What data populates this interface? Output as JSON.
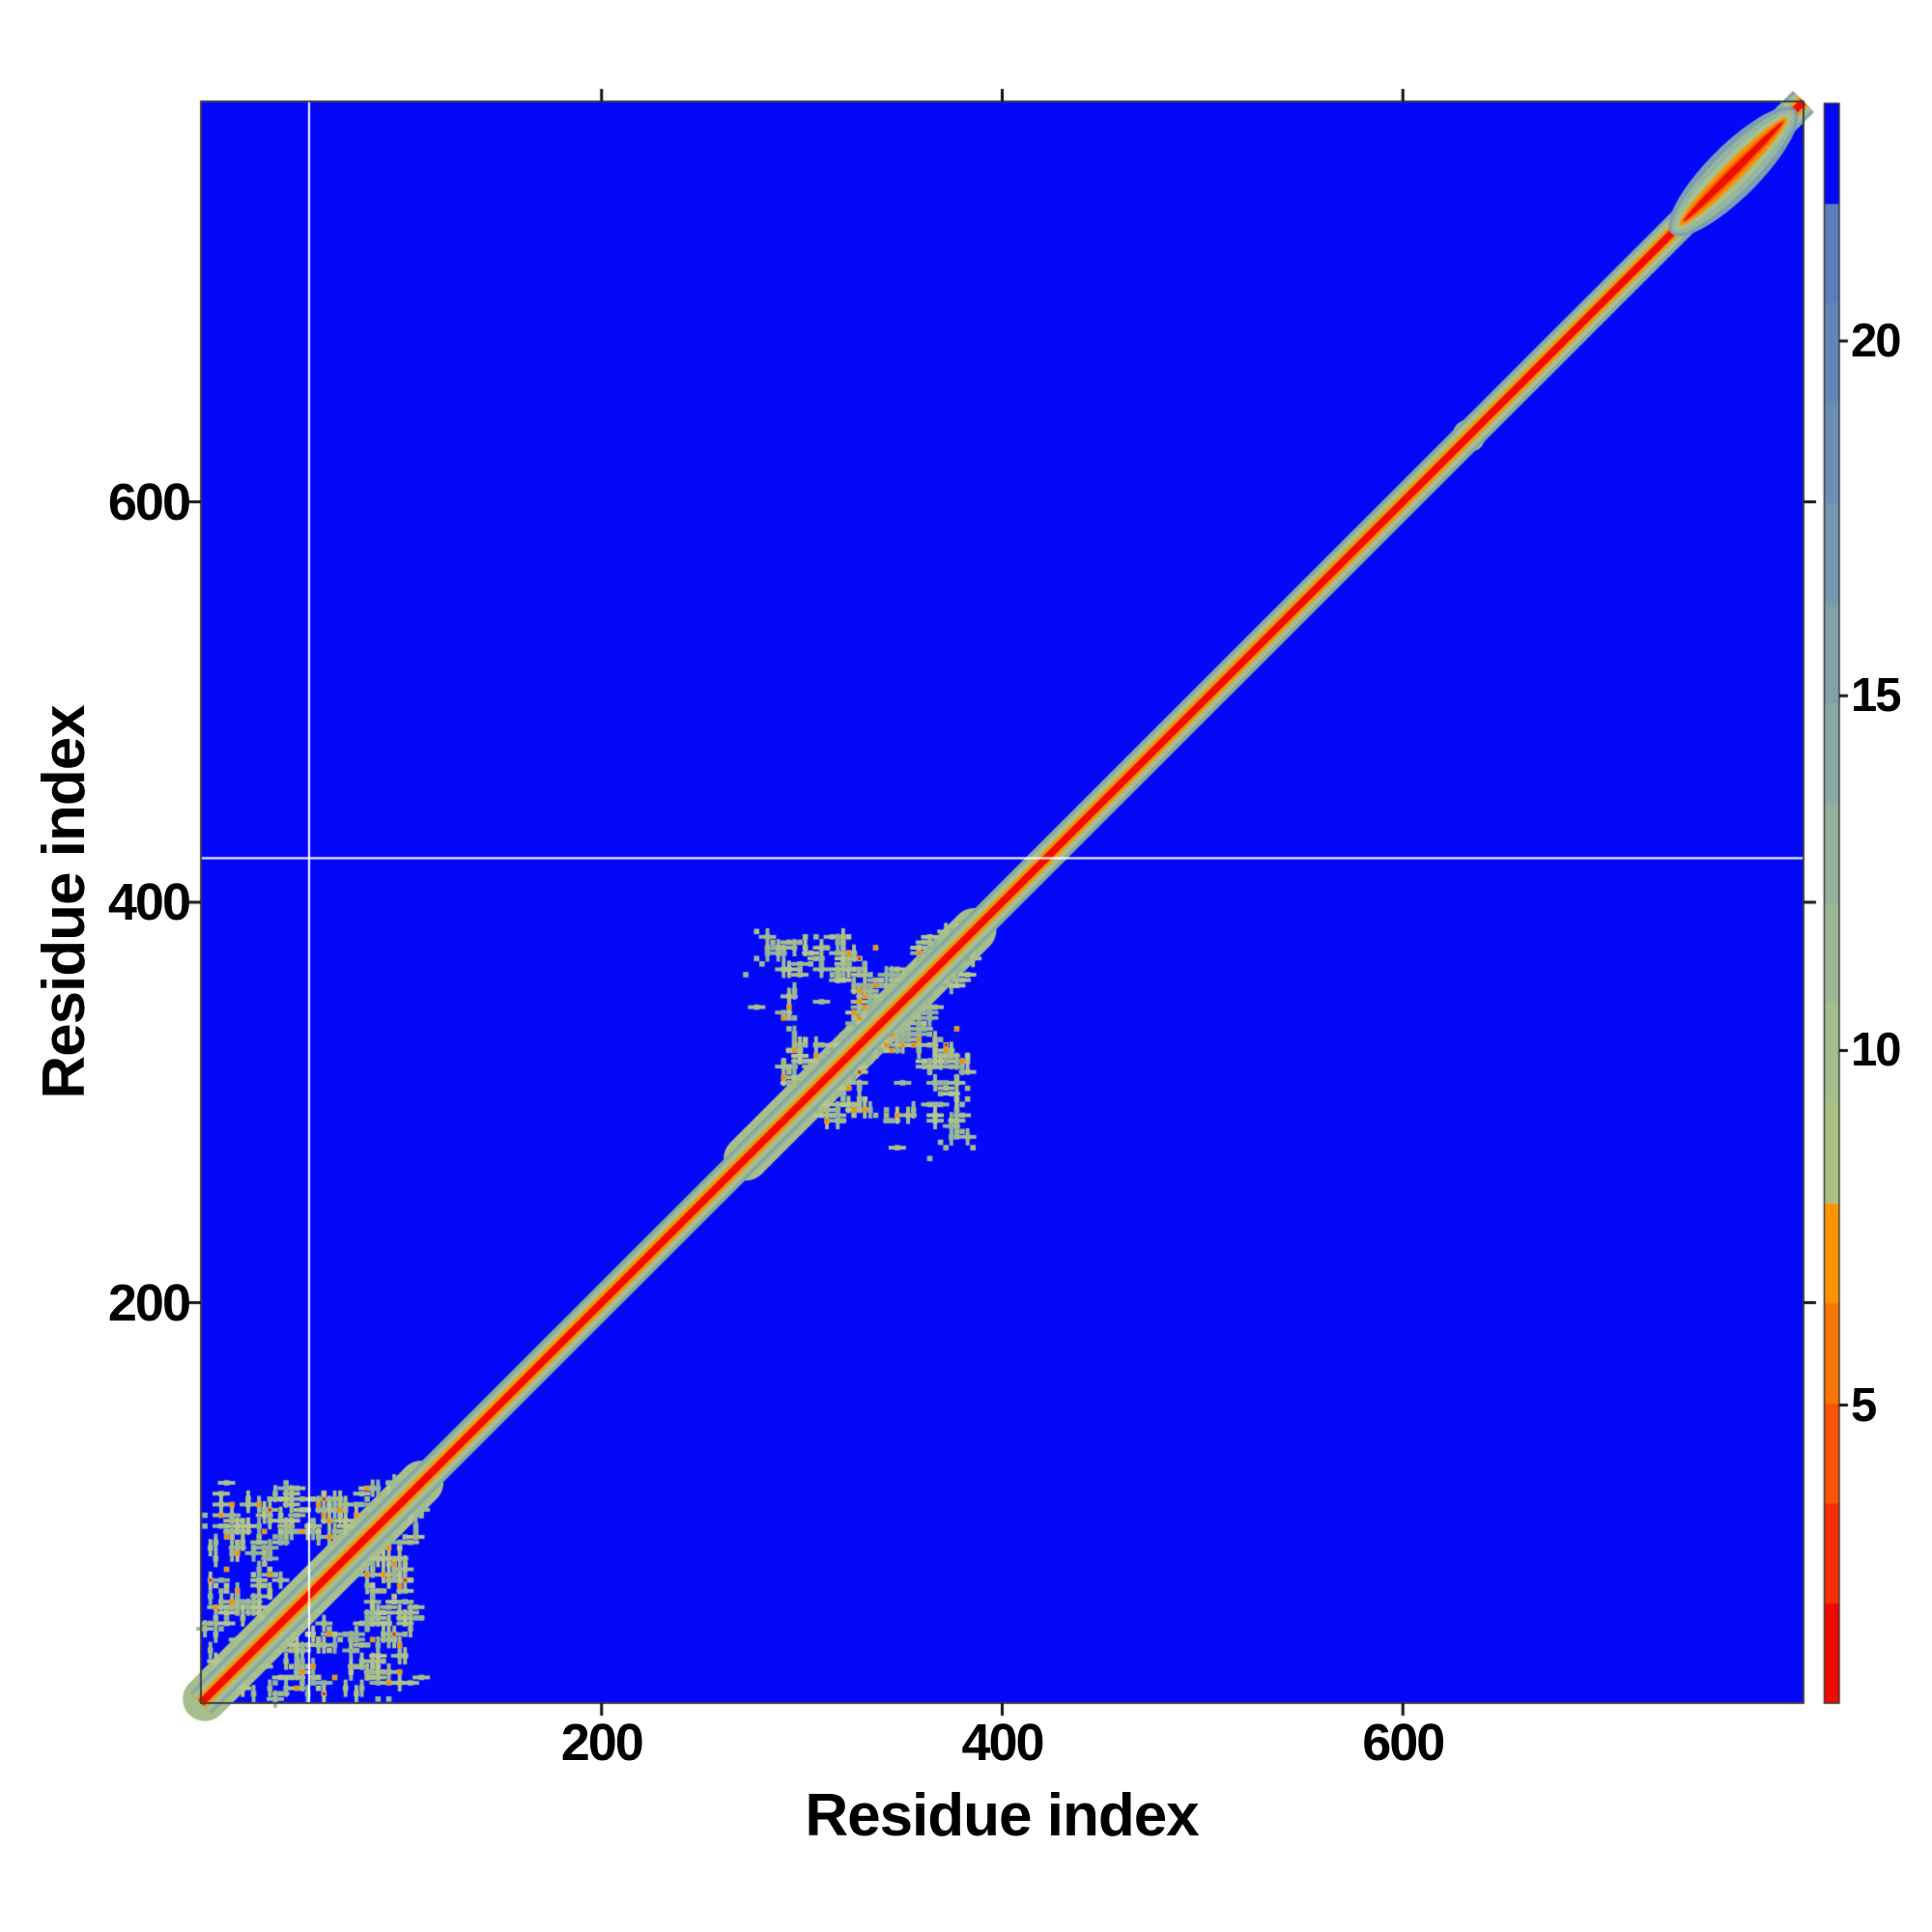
{
  "figure": {
    "background_color": "#ffffff",
    "kind": "residue distance matrix heatmap"
  },
  "chart_data": {
    "type": "heatmap",
    "title": "",
    "xlabel": "Residue index",
    "ylabel": "Residue index",
    "x_range": [
      0,
      800
    ],
    "y_range": [
      0,
      800
    ],
    "x_ticks": [
      200,
      400,
      600
    ],
    "y_ticks": [
      200,
      400,
      600
    ],
    "grid": "off",
    "background_value_color": "#0408fa",
    "frame_color": "#3e4044",
    "tick_mark_color": "#151515",
    "label_color": "#000000",
    "diagonal": {
      "from": 0,
      "to": 800,
      "layers": [
        {
          "name": "outer-teal-fringe",
          "color": "#87a8a2",
          "width": 31
        },
        {
          "name": "sage-fringe",
          "color": "#a6be8c",
          "width": 24
        },
        {
          "name": "orange-fringe",
          "color": "#fb9200",
          "width": 13.5
        },
        {
          "name": "red-core",
          "color": "#ee0e00",
          "width": 7.5
        }
      ]
    },
    "clusters": [
      {
        "name": "domain-block-1",
        "from": 2,
        "to": 110,
        "seed": 1337,
        "holes": 5
      },
      {
        "name": "domain-block-2",
        "from": 272,
        "to": 386,
        "seed": 424242,
        "holes": 6
      }
    ],
    "speckle_palette": {
      "sage": [
        "#a9c08b",
        "#9fba93",
        "#b4c78e",
        "#92b29e"
      ],
      "orange": "#f98f00",
      "red": "#e93000"
    },
    "features": [
      {
        "type": "lens",
        "from": 734,
        "to": 796,
        "half_width": 27,
        "layer_colors": [
          "#7b9eb3",
          "#95b5a3",
          "#a8bf8e",
          "#fb9000",
          "#f96300",
          "#ee0e00"
        ]
      },
      {
        "type": "spot",
        "residue": 633,
        "radius": 17,
        "layer_colors": [
          "#a6be8c",
          "#fb9000"
        ]
      },
      {
        "type": "bulge",
        "residue": 713,
        "radius": 10,
        "layer_colors": [
          "#a6be8c",
          "#fb9000"
        ]
      }
    ],
    "gridlines": {
      "vertical_at_residue": 54,
      "horizontal_at_residue": 422,
      "color": "#ffffff"
    },
    "colorbar": {
      "min": 0.8,
      "max": 23.35,
      "ticks": [
        5,
        10,
        15,
        20
      ],
      "bands": [
        {
          "from": 0.8,
          "to": 2.21,
          "color": "#ed0b00"
        },
        {
          "from": 2.21,
          "to": 3.62,
          "color": "#f52f00"
        },
        {
          "from": 3.62,
          "to": 5.03,
          "color": "#f95400"
        },
        {
          "from": 5.03,
          "to": 6.44,
          "color": "#fb7600"
        },
        {
          "from": 6.44,
          "to": 7.85,
          "color": "#fd9400"
        },
        {
          "from": 7.85,
          "to": 9.26,
          "color": "#abc083"
        },
        {
          "from": 9.26,
          "to": 10.67,
          "color": "#a5bd8c"
        },
        {
          "from": 10.67,
          "to": 12.08,
          "color": "#9db794"
        },
        {
          "from": 12.08,
          "to": 13.49,
          "color": "#94b09b"
        },
        {
          "from": 13.49,
          "to": 14.9,
          "color": "#8aa8a2"
        },
        {
          "from": 14.9,
          "to": 16.31,
          "color": "#80a0a8"
        },
        {
          "from": 16.31,
          "to": 17.72,
          "color": "#7697ae"
        },
        {
          "from": 17.72,
          "to": 19.13,
          "color": "#6c8eb3"
        },
        {
          "from": 19.13,
          "to": 20.54,
          "color": "#6386b6"
        },
        {
          "from": 20.54,
          "to": 21.94,
          "color": "#5a7eba"
        },
        {
          "from": 21.94,
          "to": 23.35,
          "color": "#0408fa"
        }
      ]
    }
  }
}
